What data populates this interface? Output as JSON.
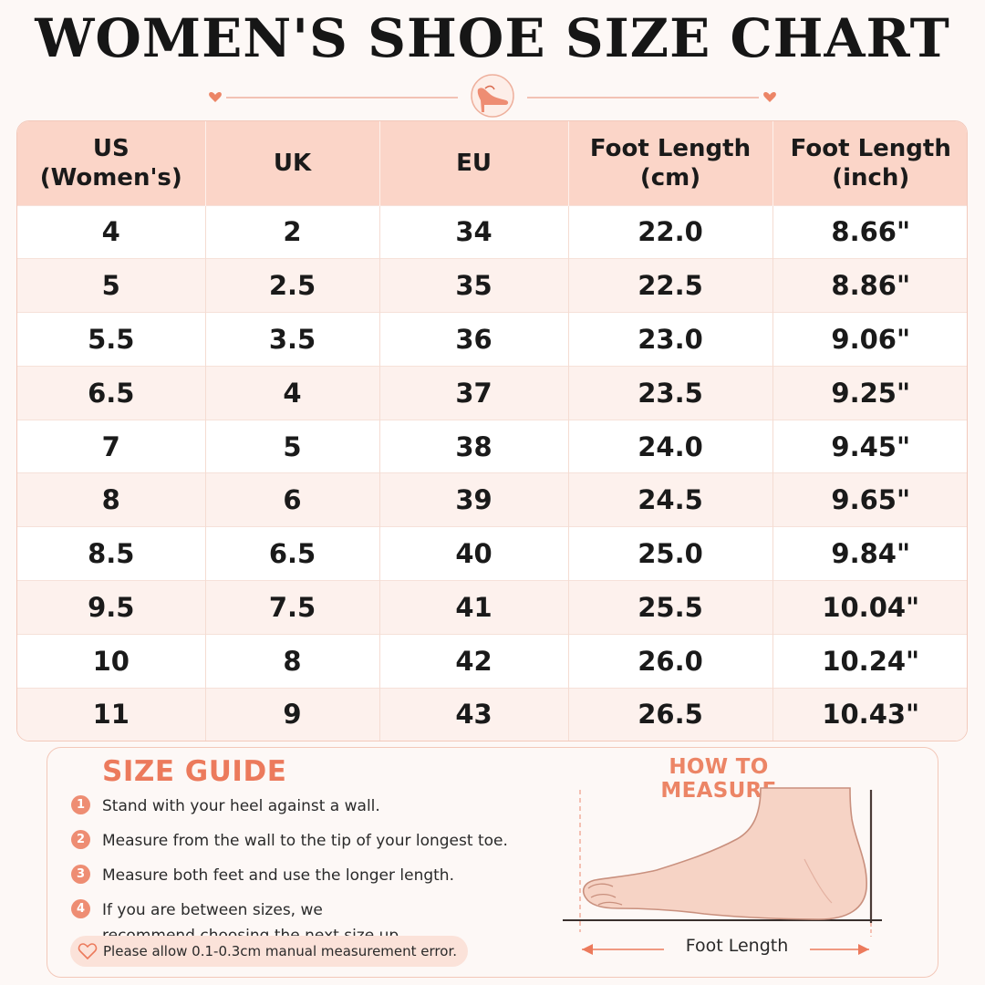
{
  "title": "WOMEN'S SHOE SIZE CHART",
  "table": {
    "headers": [
      {
        "line1": "US",
        "line2": "(Women's)"
      },
      {
        "line1": "UK",
        "line2": ""
      },
      {
        "line1": "EU",
        "line2": ""
      },
      {
        "line1": "Foot Length",
        "line2": "(cm)"
      },
      {
        "line1": "Foot Length",
        "line2": "(inch)"
      }
    ],
    "rows": [
      [
        "4",
        "2",
        "34",
        "22.0",
        "8.66\""
      ],
      [
        "5",
        "2.5",
        "35",
        "22.5",
        "8.86\""
      ],
      [
        "5.5",
        "3.5",
        "36",
        "23.0",
        "9.06\""
      ],
      [
        "6.5",
        "4",
        "37",
        "23.5",
        "9.25\""
      ],
      [
        "7",
        "5",
        "38",
        "24.0",
        "9.45\""
      ],
      [
        "8",
        "6",
        "39",
        "24.5",
        "9.65\""
      ],
      [
        "8.5",
        "6.5",
        "40",
        "25.0",
        "9.84\""
      ],
      [
        "9.5",
        "7.5",
        "41",
        "25.5",
        "10.04\""
      ],
      [
        "10",
        "8",
        "42",
        "26.0",
        "10.24\""
      ],
      [
        "11",
        "9",
        "43",
        "26.5",
        "10.43\""
      ]
    ]
  },
  "size_guide": {
    "title": "SIZE GUIDE",
    "steps": [
      {
        "num": "1",
        "text": "Stand with your heel against a wall."
      },
      {
        "num": "2",
        "text": "Measure from the wall to the tip of your longest toe."
      },
      {
        "num": "3",
        "text": "Measure both feet and use the longer length."
      },
      {
        "num": "4",
        "text": "If you are between sizes, we recommend choosing the next size up."
      }
    ],
    "note": "Please allow 0.1-0.3cm manual measurement error."
  },
  "how_to_measure": {
    "title": "HOW TO MEASURE",
    "label": "Foot Length"
  },
  "colors": {
    "accent": "#ec7a5c",
    "header_bg": "#fbd5c8",
    "row_alt": "#fdf1ed"
  },
  "icons": [
    "heart-icon",
    "high-heel-shoe-icon",
    "foot-illustration"
  ]
}
